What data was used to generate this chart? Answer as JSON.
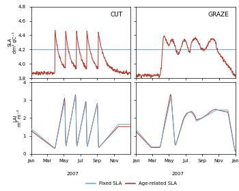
{
  "title_cut": "CUT",
  "title_graze": "GRAZE",
  "ylabel_top": "SLA\ndm² gC⁻¹",
  "ylabel_bot": "LAI\nm² m⁻²",
  "xlabel": "2007",
  "legend_fixed": "Fixed SLA",
  "legend_age": "Age-related SLA",
  "color_fixed": "#6ab0d4",
  "color_age": "#c0392b",
  "sla_fixed_value": 4.2,
  "ylim_sla": [
    3.8,
    4.8
  ],
  "ylim_lai": [
    0,
    4
  ],
  "yticks_sla": [
    3.8,
    4.0,
    4.2,
    4.4,
    4.6,
    4.8
  ],
  "yticks_lai": [
    0,
    1,
    2,
    3,
    4
  ]
}
